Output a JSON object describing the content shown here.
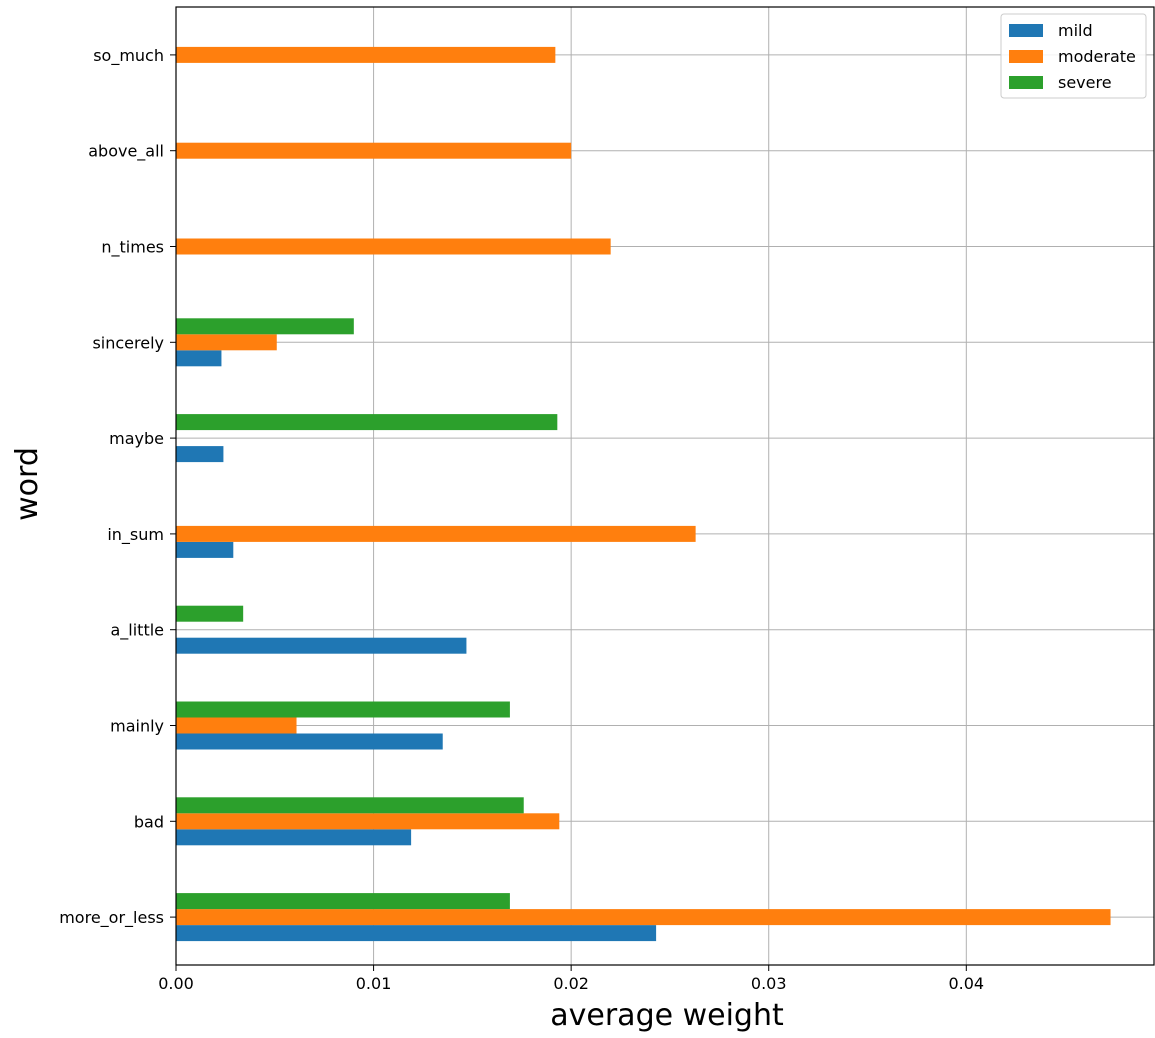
{
  "chart_data": {
    "type": "bar",
    "orientation": "horizontal",
    "title": "",
    "xlabel": "average weight",
    "ylabel": "word",
    "xlim": [
      0,
      0.0495
    ],
    "xticks": [
      0.0,
      0.01,
      0.02,
      0.03,
      0.04
    ],
    "xtick_labels": [
      "0.00",
      "0.01",
      "0.02",
      "0.03",
      "0.04"
    ],
    "grid": true,
    "legend_position": "top-right",
    "categories": [
      "more_or_less",
      "bad",
      "mainly",
      "a_little",
      "in_sum",
      "maybe",
      "sincerely",
      "n_times",
      "above_all",
      "so_much"
    ],
    "series": [
      {
        "name": "mild",
        "color": "#1f77b4",
        "values": [
          0.0243,
          0.0119,
          0.0135,
          0.0147,
          0.0029,
          0.0024,
          0.0023,
          0,
          0,
          0
        ]
      },
      {
        "name": "moderate",
        "color": "#ff7f0e",
        "values": [
          0.0473,
          0.0194,
          0.0061,
          0,
          0.0263,
          0,
          0.0051,
          0.022,
          0.02,
          0.0192
        ]
      },
      {
        "name": "severe",
        "color": "#2ca02c",
        "values": [
          0.0169,
          0.0176,
          0.0169,
          0.0034,
          0,
          0.0193,
          0.009,
          0,
          0,
          0
        ]
      }
    ]
  }
}
